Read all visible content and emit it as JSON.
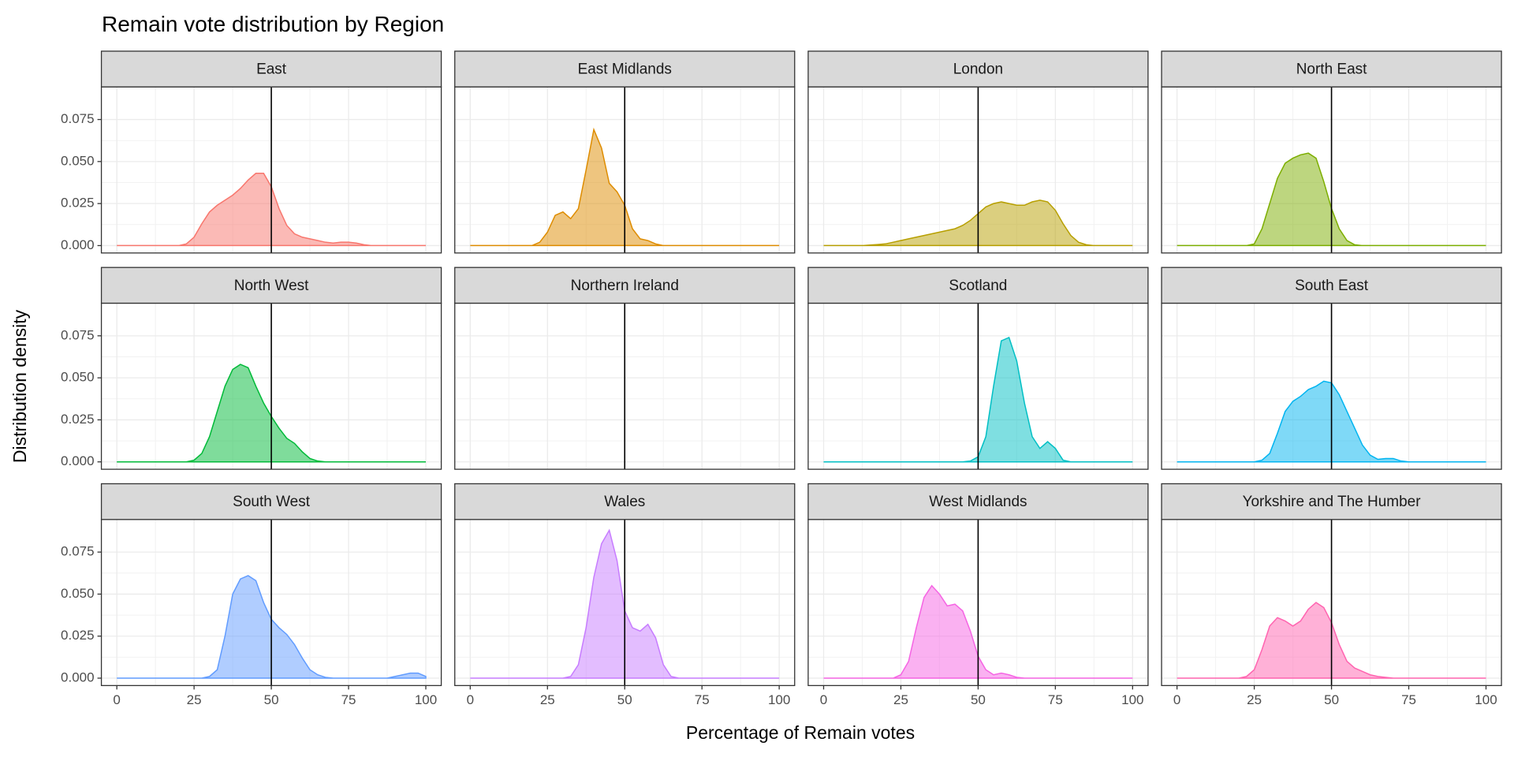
{
  "chart_data": {
    "type": "density",
    "title": "Remain vote distribution by Region",
    "xlabel": "Percentage of Remain votes",
    "ylabel": "Distribution density",
    "xlim": [
      -5,
      105
    ],
    "xticks": [
      0,
      25,
      50,
      75,
      100
    ],
    "ylim": [
      -0.0044,
      0.0944
    ],
    "yticks": [
      {
        "value": 0,
        "label": "0.000"
      },
      {
        "value": 0.025,
        "label": "0.025"
      },
      {
        "value": 0.05,
        "label": "0.050"
      },
      {
        "value": 0.075,
        "label": "0.075"
      }
    ],
    "grid": true,
    "vline": 50,
    "x": [
      0,
      2.5,
      5,
      7.5,
      10,
      12.5,
      15,
      17.5,
      20,
      22.5,
      25,
      27.5,
      30,
      32.5,
      35,
      37.5,
      40,
      42.5,
      45,
      47.5,
      50,
      52.5,
      55,
      57.5,
      60,
      62.5,
      65,
      67.5,
      70,
      72.5,
      75,
      77.5,
      80,
      82.5,
      85,
      87.5,
      90,
      92.5,
      95,
      97.5,
      100
    ],
    "series": [
      {
        "name": "East",
        "color": "#F8766D",
        "values": [
          0,
          0,
          0,
          0,
          0,
          0,
          0,
          0,
          0,
          0.001,
          0.005,
          0.013,
          0.02,
          0.024,
          0.027,
          0.03,
          0.034,
          0.039,
          0.043,
          0.043,
          0.035,
          0.022,
          0.012,
          0.007,
          0.005,
          0.004,
          0.003,
          0.002,
          0.0015,
          0.002,
          0.002,
          0.0015,
          0.0005,
          0,
          0,
          0,
          0,
          0,
          0,
          0,
          0
        ]
      },
      {
        "name": "East Midlands",
        "color": "#DE8C00",
        "values": [
          0,
          0,
          0,
          0,
          0,
          0,
          0,
          0,
          0,
          0.002,
          0.008,
          0.018,
          0.02,
          0.016,
          0.022,
          0.045,
          0.069,
          0.058,
          0.037,
          0.032,
          0.024,
          0.01,
          0.004,
          0.003,
          0.001,
          0,
          0,
          0,
          0,
          0,
          0,
          0,
          0,
          0,
          0,
          0,
          0,
          0,
          0,
          0,
          0
        ]
      },
      {
        "name": "London",
        "color": "#B79F00",
        "values": [
          0,
          0,
          0,
          0,
          0,
          0,
          0.0003,
          0.0006,
          0.001,
          0.002,
          0.003,
          0.004,
          0.005,
          0.006,
          0.007,
          0.008,
          0.009,
          0.01,
          0.012,
          0.015,
          0.019,
          0.023,
          0.025,
          0.026,
          0.025,
          0.024,
          0.024,
          0.026,
          0.027,
          0.026,
          0.021,
          0.013,
          0.006,
          0.002,
          0.0005,
          0,
          0,
          0,
          0,
          0,
          0
        ]
      },
      {
        "name": "North East",
        "color": "#7CAE00",
        "values": [
          0,
          0,
          0,
          0,
          0,
          0,
          0,
          0,
          0,
          0,
          0.001,
          0.01,
          0.025,
          0.04,
          0.049,
          0.052,
          0.054,
          0.055,
          0.052,
          0.038,
          0.022,
          0.01,
          0.003,
          0.0005,
          0,
          0,
          0,
          0,
          0,
          0,
          0,
          0,
          0,
          0,
          0,
          0,
          0,
          0,
          0,
          0,
          0
        ]
      },
      {
        "name": "North West",
        "color": "#00BA38",
        "values": [
          0,
          0,
          0,
          0,
          0,
          0,
          0,
          0,
          0,
          0,
          0.001,
          0.005,
          0.015,
          0.03,
          0.045,
          0.055,
          0.058,
          0.056,
          0.045,
          0.035,
          0.027,
          0.02,
          0.014,
          0.011,
          0.006,
          0.002,
          0.0005,
          0,
          0,
          0,
          0,
          0,
          0,
          0,
          0,
          0,
          0,
          0,
          0,
          0,
          0
        ]
      },
      {
        "name": "Northern Ireland",
        "color": "#00C08B",
        "values": [
          null,
          null,
          null,
          null,
          null,
          null,
          null,
          null,
          null,
          null,
          null,
          null,
          null,
          null,
          null,
          null,
          null,
          null,
          null,
          null,
          null,
          null,
          null,
          null,
          null,
          null,
          null,
          null,
          null,
          null,
          null,
          null,
          null,
          null,
          null,
          null,
          null,
          null,
          null,
          null,
          null
        ]
      },
      {
        "name": "Scotland",
        "color": "#00BFC4",
        "values": [
          0,
          0,
          0,
          0,
          0,
          0,
          0,
          0,
          0,
          0,
          0,
          0,
          0,
          0,
          0,
          0,
          0,
          0,
          0,
          0.0005,
          0.003,
          0.015,
          0.045,
          0.072,
          0.074,
          0.06,
          0.035,
          0.015,
          0.008,
          0.012,
          0.008,
          0.001,
          0,
          0,
          0,
          0,
          0,
          0,
          0,
          0,
          0
        ]
      },
      {
        "name": "South East",
        "color": "#00B4F0",
        "values": [
          0,
          0,
          0,
          0,
          0,
          0,
          0,
          0,
          0,
          0,
          0,
          0.001,
          0.005,
          0.017,
          0.03,
          0.036,
          0.039,
          0.043,
          0.045,
          0.048,
          0.047,
          0.04,
          0.03,
          0.02,
          0.01,
          0.004,
          0.0015,
          0.002,
          0.002,
          0.0005,
          0,
          0,
          0,
          0,
          0,
          0,
          0,
          0,
          0,
          0,
          0
        ]
      },
      {
        "name": "South West",
        "color": "#619CFF",
        "values": [
          0,
          0,
          0,
          0,
          0,
          0,
          0,
          0,
          0,
          0,
          0,
          0,
          0.001,
          0.005,
          0.025,
          0.05,
          0.059,
          0.061,
          0.058,
          0.045,
          0.035,
          0.03,
          0.026,
          0.02,
          0.012,
          0.005,
          0.002,
          0.0005,
          0,
          0,
          0,
          0,
          0,
          0,
          0,
          0,
          0.001,
          0.002,
          0.003,
          0.003,
          0.001
        ]
      },
      {
        "name": "Wales",
        "color": "#C77CFF",
        "values": [
          0,
          0,
          0,
          0,
          0,
          0,
          0,
          0,
          0,
          0,
          0,
          0,
          0,
          0.001,
          0.008,
          0.03,
          0.06,
          0.08,
          0.088,
          0.07,
          0.04,
          0.03,
          0.028,
          0.032,
          0.024,
          0.008,
          0.001,
          0,
          0,
          0,
          0,
          0,
          0,
          0,
          0,
          0,
          0,
          0,
          0,
          0,
          0
        ]
      },
      {
        "name": "West Midlands",
        "color": "#F564E3",
        "values": [
          0,
          0,
          0,
          0,
          0,
          0,
          0,
          0,
          0,
          0,
          0.002,
          0.01,
          0.03,
          0.048,
          0.055,
          0.05,
          0.043,
          0.044,
          0.04,
          0.028,
          0.013,
          0.005,
          0.002,
          0.003,
          0.002,
          0.0005,
          0,
          0,
          0,
          0,
          0,
          0,
          0,
          0,
          0,
          0,
          0,
          0,
          0,
          0,
          0
        ]
      },
      {
        "name": "Yorkshire and The Humber",
        "color": "#FF64B0",
        "values": [
          0,
          0,
          0,
          0,
          0,
          0,
          0,
          0,
          0,
          0.001,
          0.005,
          0.017,
          0.031,
          0.036,
          0.034,
          0.031,
          0.034,
          0.041,
          0.045,
          0.042,
          0.033,
          0.02,
          0.01,
          0.006,
          0.004,
          0.002,
          0.001,
          0.0005,
          0,
          0,
          0,
          0,
          0,
          0,
          0,
          0,
          0,
          0,
          0,
          0,
          0
        ]
      }
    ]
  }
}
